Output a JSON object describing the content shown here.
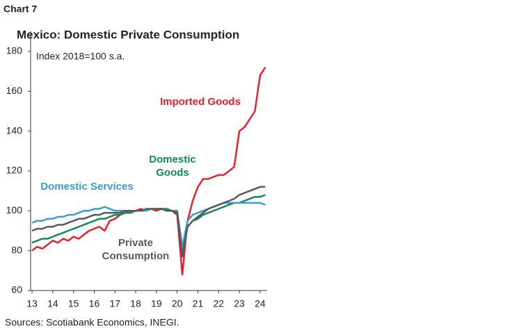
{
  "chart_data": {
    "type": "line",
    "label": "Chart 7",
    "title": "Mexico: Domestic Private Consumption",
    "y_label": "Index 2018=100 s.a.",
    "source": "Sources: Scotiabank Economics, INEGI.",
    "x": [
      2013,
      2013.25,
      2013.5,
      2013.75,
      2014,
      2014.25,
      2014.5,
      2014.75,
      2015,
      2015.25,
      2015.5,
      2015.75,
      2016,
      2016.25,
      2016.5,
      2016.75,
      2017,
      2017.25,
      2017.5,
      2017.75,
      2018,
      2018.25,
      2018.5,
      2018.75,
      2019,
      2019.25,
      2019.5,
      2019.75,
      2020,
      2020.25,
      2020.5,
      2020.75,
      2021,
      2021.25,
      2021.5,
      2021.75,
      2022,
      2022.25,
      2022.5,
      2022.75,
      2023,
      2023.25,
      2023.5,
      2023.75,
      2024,
      2024.25
    ],
    "xlim": [
      2012.93,
      2024.34
    ],
    "xticks": [
      {
        "value": 2013,
        "label": "13"
      },
      {
        "value": 2014,
        "label": "14"
      },
      {
        "value": 2015,
        "label": "15"
      },
      {
        "value": 2016,
        "label": "16"
      },
      {
        "value": 2017,
        "label": "17"
      },
      {
        "value": 2018,
        "label": "18"
      },
      {
        "value": 2019,
        "label": "19"
      },
      {
        "value": 2020,
        "label": "20"
      },
      {
        "value": 2021,
        "label": "21"
      },
      {
        "value": 2022,
        "label": "22"
      },
      {
        "value": 2023,
        "label": "23"
      },
      {
        "value": 2024,
        "label": "24"
      }
    ],
    "ylim": [
      60,
      180
    ],
    "yticks": [
      60,
      80,
      100,
      120,
      140,
      160,
      180
    ],
    "series": [
      {
        "name": "Imported Goods",
        "color": "#e8202a",
        "values": [
          80,
          82,
          81,
          83,
          85,
          84,
          86,
          85,
          87,
          86,
          88,
          90,
          91,
          92,
          90,
          95,
          96,
          98,
          99,
          100,
          100,
          101,
          100,
          101,
          100,
          101,
          100,
          100,
          98,
          68,
          95,
          105,
          112,
          116,
          116,
          117,
          118,
          118,
          120,
          122,
          140,
          142,
          146,
          150,
          168,
          172
        ]
      },
      {
        "name": "Domestic Goods",
        "color": "#138a5a",
        "values": [
          84,
          85,
          86,
          86,
          87,
          88,
          89,
          90,
          91,
          92,
          93,
          94,
          95,
          96,
          96,
          97,
          98,
          98,
          99,
          99,
          100,
          100,
          100,
          101,
          101,
          101,
          101,
          100,
          100,
          78,
          92,
          95,
          96,
          98,
          99,
          100,
          101,
          102,
          103,
          104,
          104,
          105,
          106,
          107,
          107,
          108
        ]
      },
      {
        "name": "Domestic Services",
        "color": "#3b9bd1",
        "values": [
          94,
          95,
          95,
          96,
          96,
          97,
          97,
          98,
          98,
          99,
          100,
          100,
          101,
          101,
          102,
          101,
          100,
          100,
          100,
          100,
          100,
          100,
          100,
          101,
          101,
          101,
          100,
          100,
          100,
          82,
          95,
          98,
          99,
          100,
          101,
          102,
          103,
          104,
          104,
          104,
          104,
          104,
          104,
          104,
          104,
          103
        ]
      },
      {
        "name": "Private Consumption",
        "color": "#595959",
        "values": [
          90,
          91,
          91,
          92,
          92,
          93,
          93,
          94,
          95,
          96,
          96,
          97,
          98,
          98,
          99,
          99,
          99,
          99,
          100,
          100,
          100,
          100,
          101,
          101,
          101,
          101,
          100,
          100,
          99,
          77,
          92,
          95,
          97,
          99,
          101,
          102,
          103,
          104,
          105,
          106,
          108,
          109,
          110,
          111,
          112,
          112
        ]
      }
    ]
  }
}
